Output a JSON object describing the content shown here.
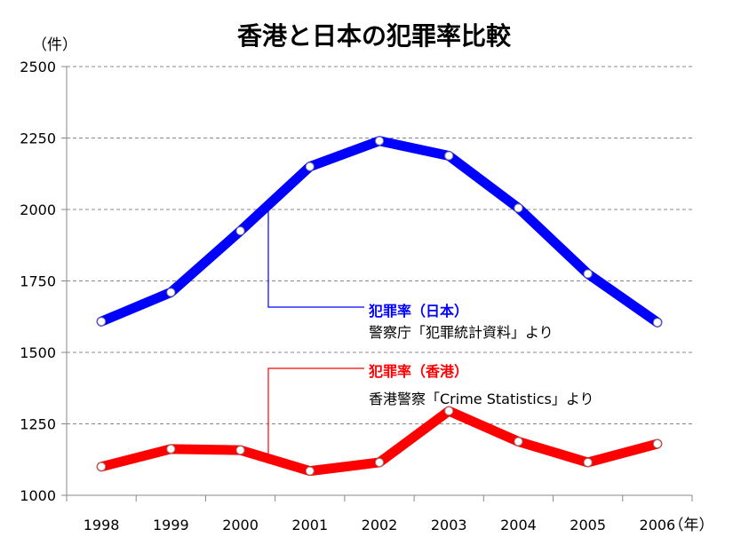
{
  "chart_data": {
    "type": "line",
    "title": "香港と日本の犯罪率比較",
    "y_unit_label": "（件）",
    "x_unit_label": "（年）",
    "categories": [
      "1998",
      "1999",
      "2000",
      "2001",
      "2002",
      "2003",
      "2004",
      "2005",
      "2006"
    ],
    "yticks": [
      "2500",
      "2250",
      "2000",
      "1750",
      "1500",
      "1250",
      "1000"
    ],
    "ylim": [
      1000,
      2500
    ],
    "grid": true,
    "series": [
      {
        "name": "犯罪率（日本）",
        "source": "警察庁「犯罪統計資料」より",
        "color": "#0000ff",
        "values": [
          1608,
          1710,
          1925,
          2150,
          2240,
          2188,
          2005,
          1775,
          1605
        ]
      },
      {
        "name": "犯罪率（香港）",
        "source": "香港警察「Crime Statistics」より",
        "color": "#ff0000",
        "values": [
          1100,
          1162,
          1158,
          1085,
          1115,
          1295,
          1188,
          1115,
          1180
        ]
      }
    ]
  }
}
